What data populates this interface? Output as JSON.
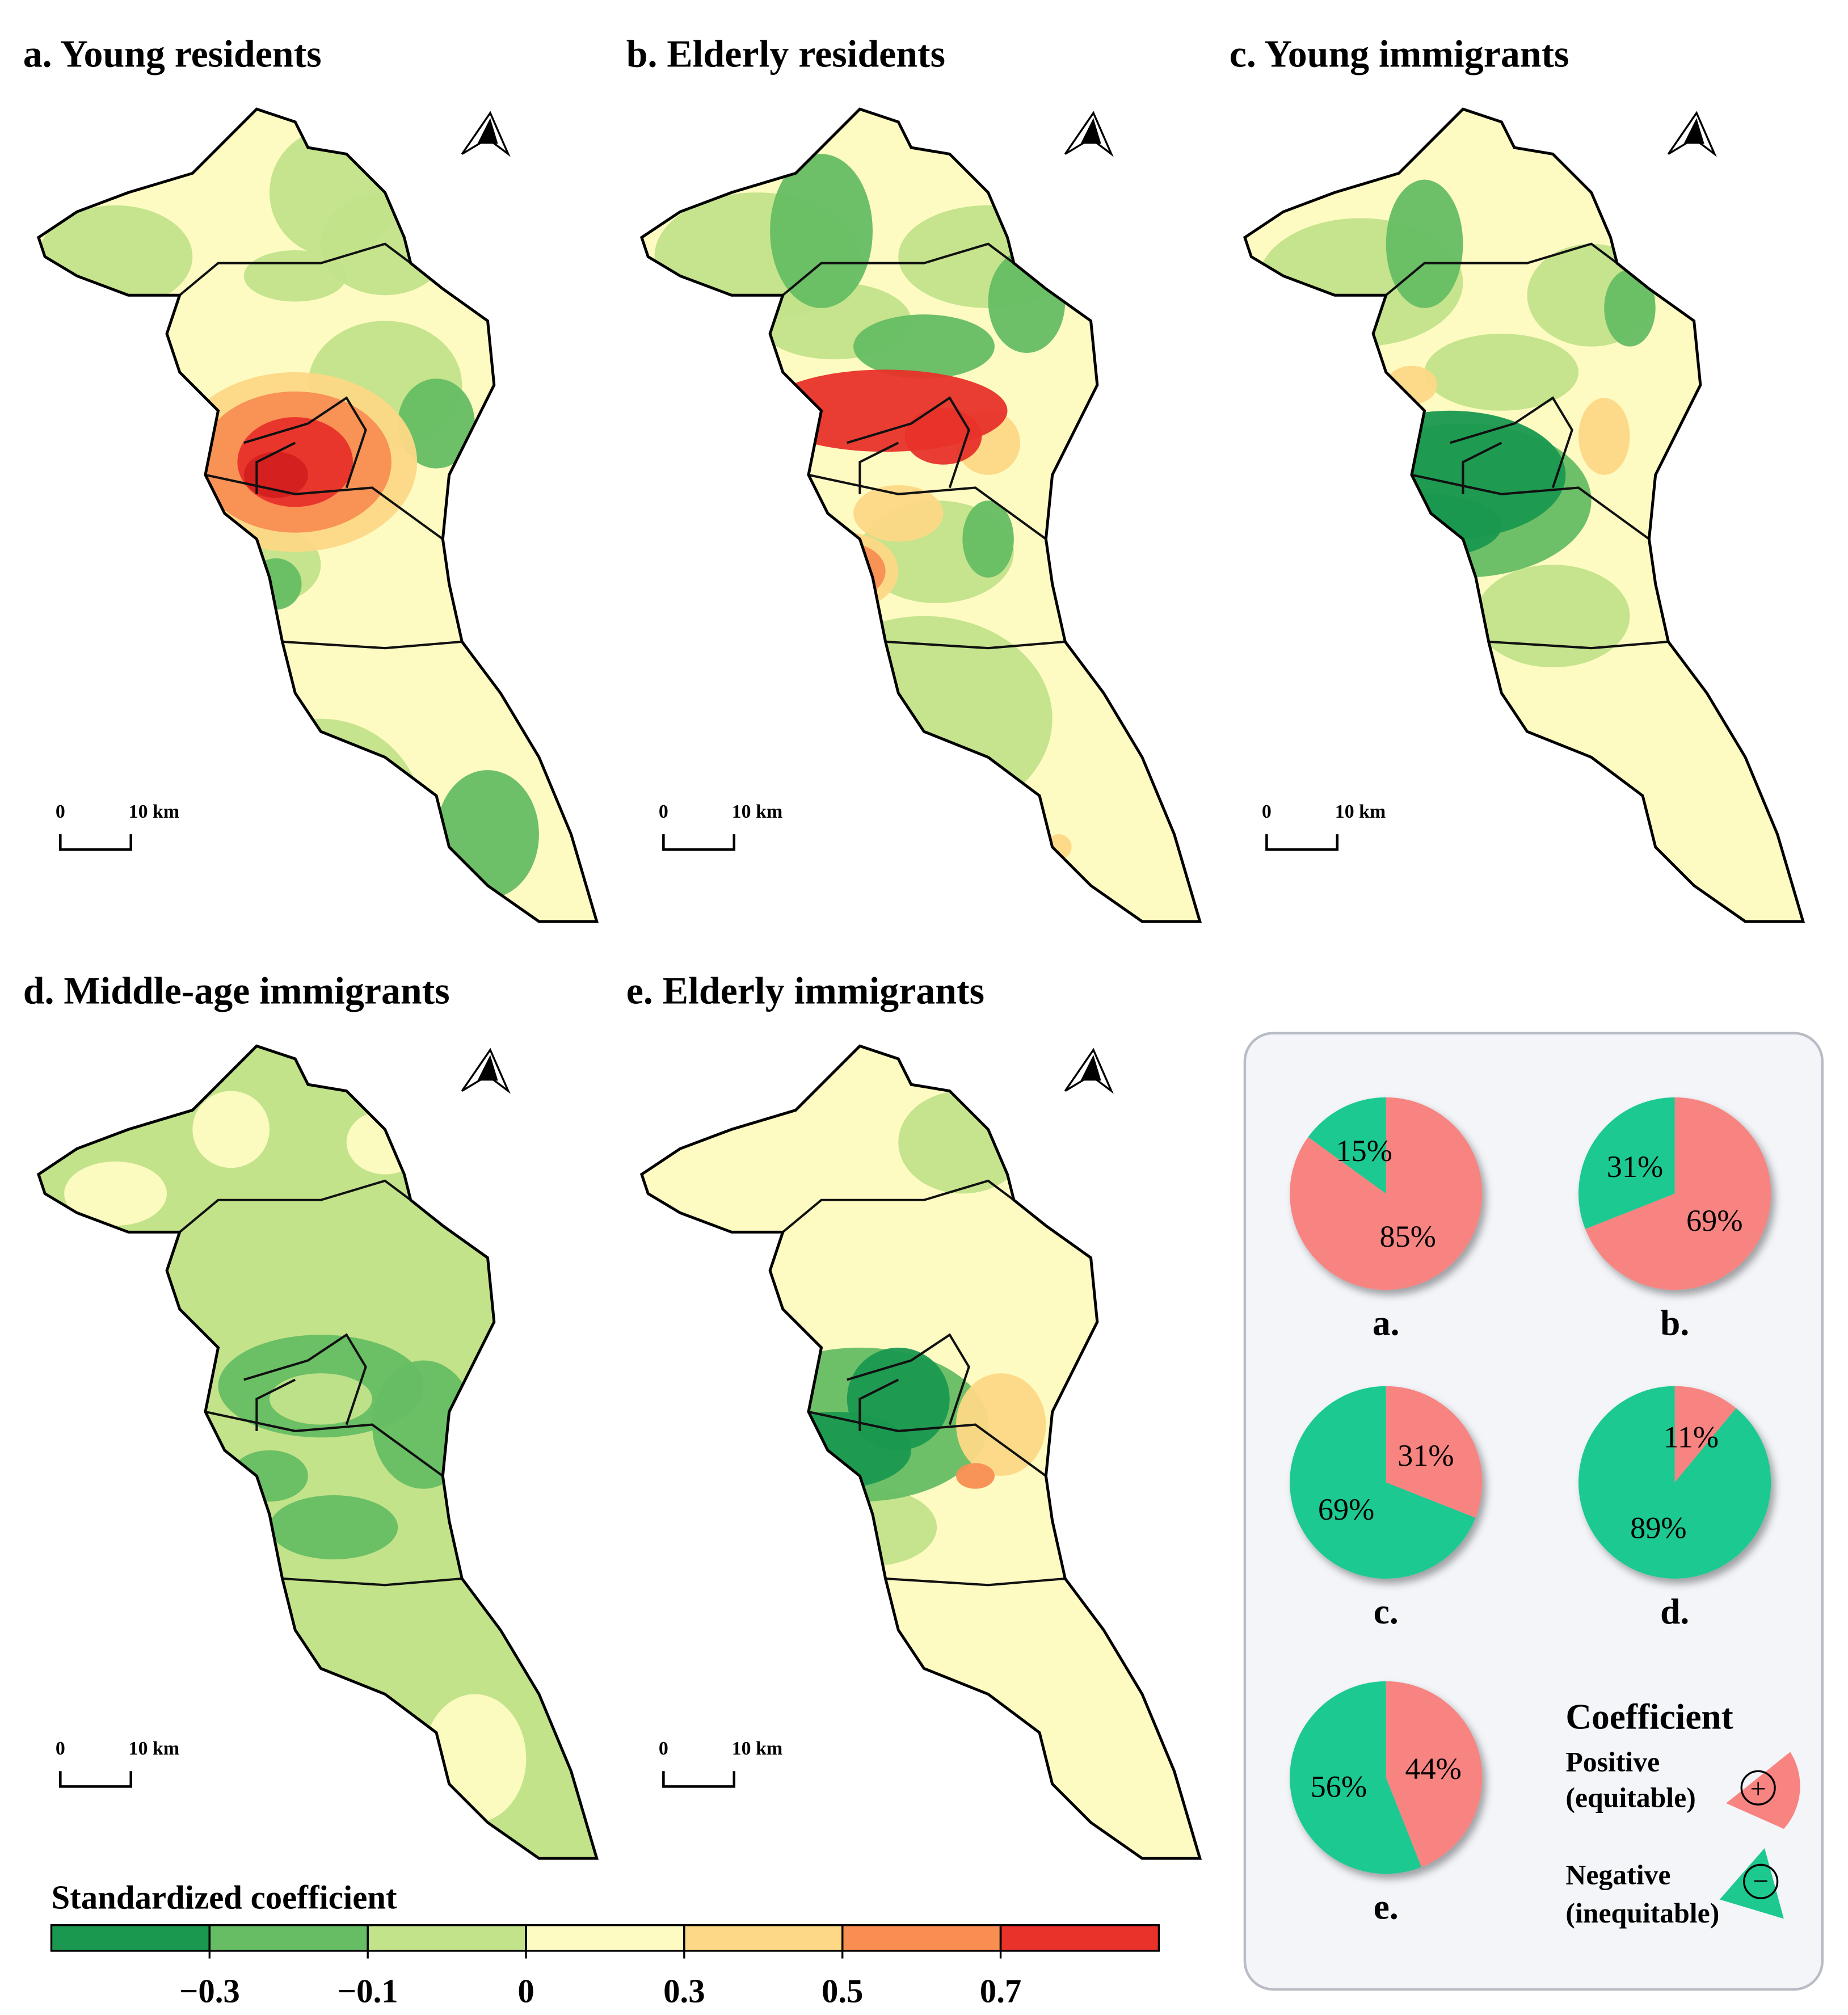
{
  "maps": [
    {
      "title": "a. Young residents"
    },
    {
      "title": "b. Elderly residents"
    },
    {
      "title": "c. Young immigrants"
    },
    {
      "title": "d. Middle-age immigrants"
    },
    {
      "title": "e. Elderly immigrants"
    }
  ],
  "scale_bar": {
    "start": "0",
    "end": "10 km"
  },
  "colorbar": {
    "title": "Standardized coefficient",
    "colors": [
      "#1a9850",
      "#66bd63",
      "#c2e38a",
      "#fefbc2",
      "#fdd886",
      "#f98e52",
      "#e8322a"
    ],
    "ticks": [
      {
        "value": -0.3,
        "label": "−0.3"
      },
      {
        "value": -0.1,
        "label": "−0.1"
      },
      0,
      0.3,
      0.5,
      0.7
    ]
  },
  "pie_legend": {
    "title": "Coefficient",
    "positive": "Positive",
    "positive_note": "(equitable)",
    "positive_symbol": "+",
    "negative": "Negative",
    "negative_note": "(inequitable)",
    "negative_symbol": "−"
  },
  "chart_data": [
    {
      "type": "pie",
      "title": "a.",
      "values": [
        15,
        85
      ],
      "value_labels": [
        "15%",
        "85%"
      ],
      "colors": [
        "#1ec990",
        "#f88482"
      ]
    },
    {
      "type": "pie",
      "title": "b.",
      "values": [
        31,
        69
      ],
      "value_labels": [
        "31%",
        "69%"
      ],
      "colors": [
        "#1ec990",
        "#f88482"
      ]
    },
    {
      "type": "pie",
      "title": "c.",
      "values": [
        69,
        31
      ],
      "value_labels": [
        "69%",
        "31%"
      ],
      "colors": [
        "#1ec990",
        "#f88482"
      ]
    },
    {
      "type": "pie",
      "title": "d.",
      "values": [
        89,
        11
      ],
      "value_labels": [
        "89%",
        "11%"
      ],
      "colors": [
        "#1ec990",
        "#f88482"
      ]
    },
    {
      "type": "pie",
      "title": "e.",
      "values": [
        56,
        44
      ],
      "value_labels": [
        "56%",
        "44%"
      ],
      "colors": [
        "#1ec990",
        "#f88482"
      ]
    }
  ]
}
